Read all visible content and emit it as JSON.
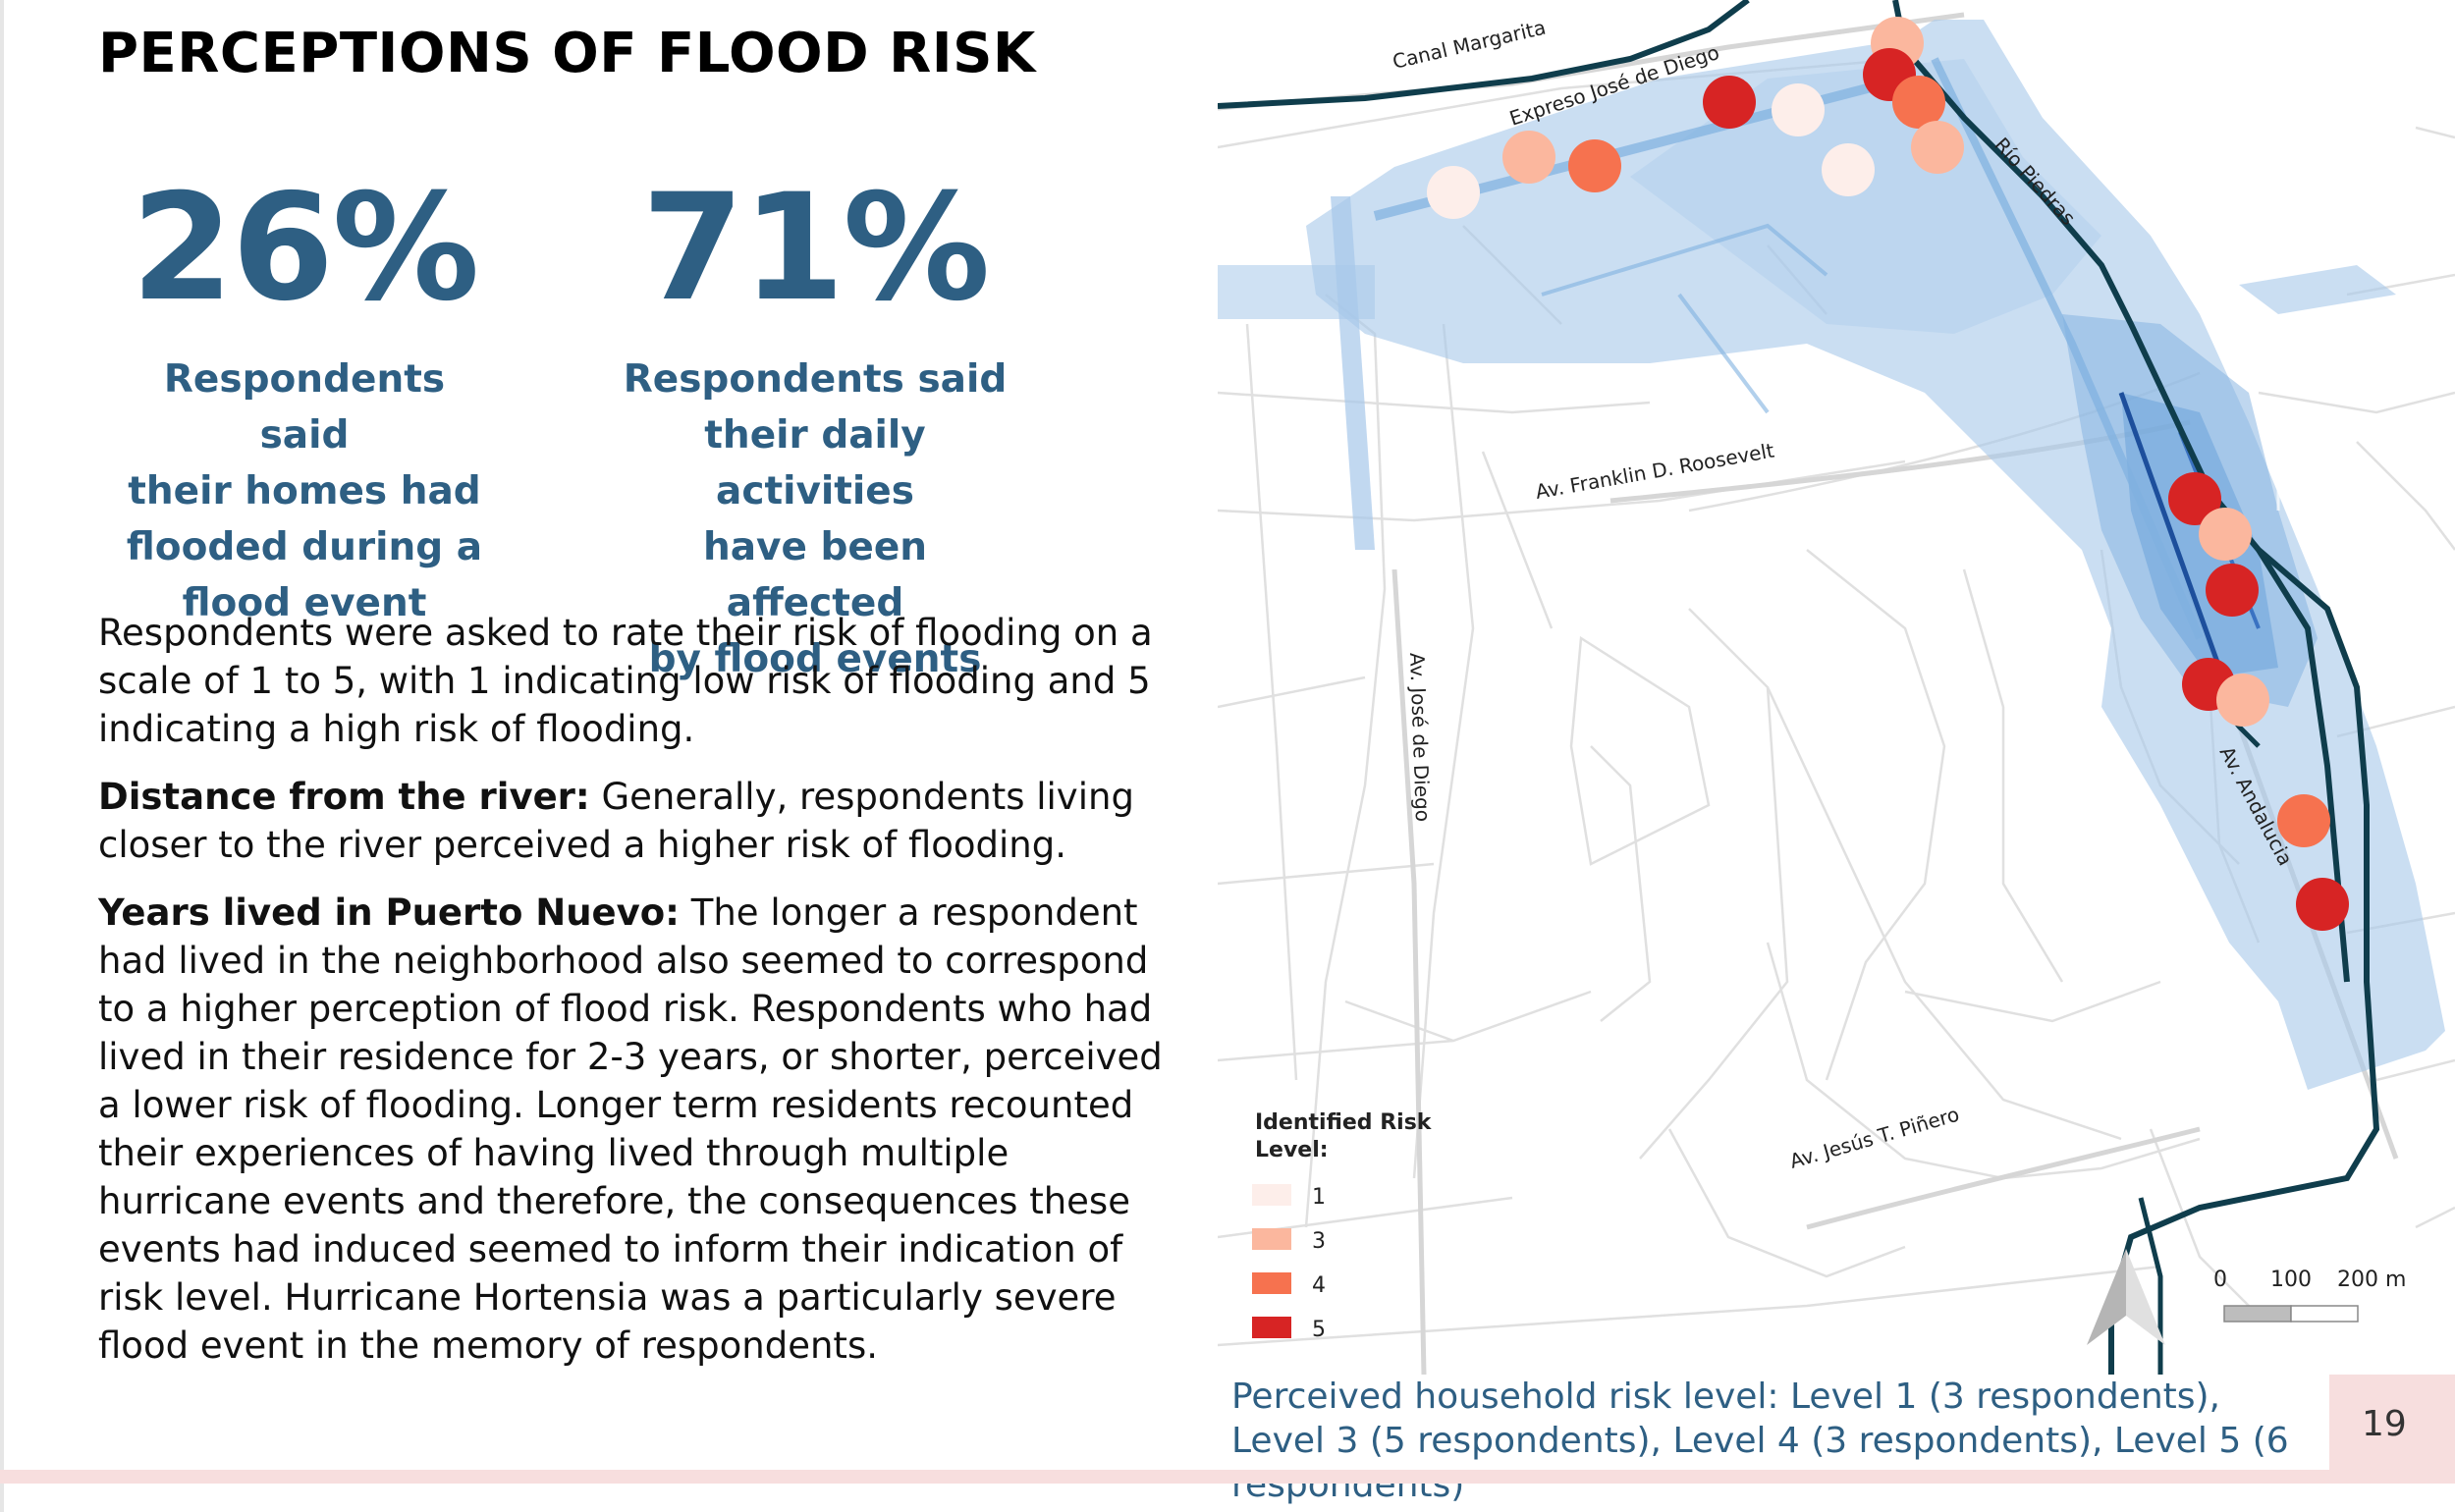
{
  "title": "PERCEPTIONS OF FLOOD RISK",
  "stats": [
    {
      "value": "26%",
      "lines": [
        "Respondents said",
        "their homes had",
        "flooded during a",
        "flood event"
      ]
    },
    {
      "value": "71%",
      "lines": [
        "Respondents said",
        "their daily activities",
        "have been affected",
        "by flood events"
      ]
    }
  ],
  "body": {
    "intro": "Respondents were asked to rate their risk of flooding on a scale of 1 to 5, with 1 indicating low risk of flooding and 5 indicating a high risk of flooding.",
    "distance_label": "Distance from the river:",
    "distance_text": " Generally, respondents living closer to the river perceived a higher risk of flooding.",
    "years_label": "Years lived in Puerto Nuevo:",
    "years_text": " The longer a respondent had lived in the neighborhood also seemed to correspond to a higher perception of flood risk. Respondents who had lived in their residence for 2-3 years, or shorter, perceived a lower risk of flooding. Longer term residents recounted their experiences of having lived through multiple hurricane events and therefore, the consequences these events had induced seemed to inform their indication of risk level. Hurricane Hortensia was a particularly severe flood event in the memory of respondents."
  },
  "map": {
    "labels": {
      "canal": "Canal Margarita",
      "expreso": "Expreso José de Diego",
      "rio": "Río Piedras",
      "roosevelt": "Av. Franklin D. Roosevelt",
      "jose_diego": "Av. José de Diego",
      "andalucia": "Av. Andalucia",
      "pinero": "Av. Jesús T. Piñero"
    },
    "legend": {
      "title_line1": "Identified Risk",
      "title_line2": "Level:",
      "items": [
        {
          "label": "1",
          "color": "#fdeeea"
        },
        {
          "label": "3",
          "color": "#fbb79e"
        },
        {
          "label": "4",
          "color": "#f6724f"
        },
        {
          "label": "5",
          "color": "#d72424"
        }
      ]
    },
    "scale": {
      "t0": "0",
      "t1": "100",
      "t2": "200 m"
    },
    "colors": {
      "level1": "#fdeeea",
      "level3": "#fbb79e",
      "level4": "#f6724f",
      "level5": "#d72424",
      "river": "#0f3d4c",
      "flood": "#a7c8ea"
    }
  },
  "caption": "Perceived household risk level: Level 1 (3 respondents), Level 3 (5 respondents), Level 4 (3 respondents), Level 5 (6 respondents)",
  "page_number": "19"
}
